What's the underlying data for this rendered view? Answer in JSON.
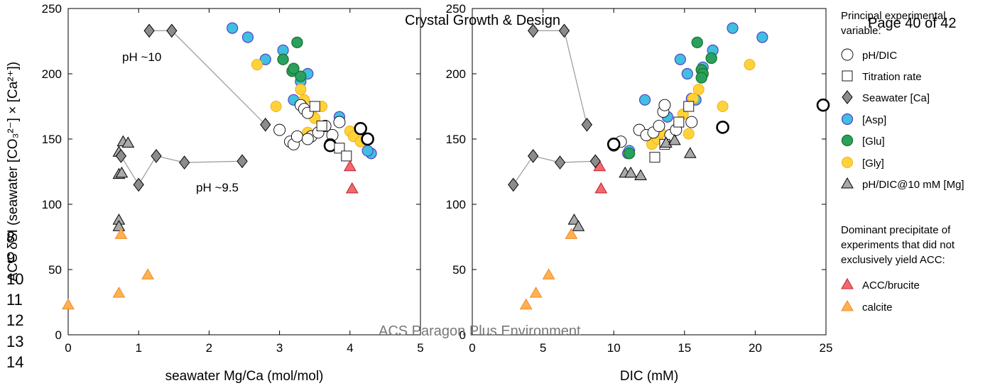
{
  "overlay": {
    "journal": "Crystal Growth & Design",
    "page": "Page 40 of 42",
    "footer": "ACS Paragon Plus Environment",
    "line_numbers": [
      "8",
      "9",
      "10",
      "11",
      "12",
      "13",
      "14"
    ]
  },
  "annotations": {
    "ph10": "pH ~10",
    "ph95": "pH ~9.5"
  },
  "legend": {
    "title1": "Principal experimental variable:",
    "title2": "Dominant precipitate of experiments that did not exclusively yield ACC:",
    "items": [
      {
        "key": "phdic",
        "label": "pH/DIC"
      },
      {
        "key": "titration",
        "label": "Titration rate"
      },
      {
        "key": "seawater",
        "label": "Seawater [Ca]"
      },
      {
        "key": "asp",
        "label": "[Asp]"
      },
      {
        "key": "glu",
        "label": "[Glu]"
      },
      {
        "key": "gly",
        "label": "[Gly]"
      },
      {
        "key": "mg",
        "label": "pH/DIC@10 mM [Mg]"
      },
      {
        "key": "brucite",
        "label": "ACC/brucite"
      },
      {
        "key": "calcite",
        "label": "calcite"
      }
    ]
  },
  "colors": {
    "asp": "#3ec0e0",
    "asp_edge": "#5a3fc4",
    "glu": "#2aa060",
    "glu_edge": "#1b7a2e",
    "gly": "#ffd23a",
    "gly_edge": "#f0b020",
    "seawater": "#8c8c8c",
    "mg": "#a9a9a9",
    "brucite": "#f06a6a",
    "brucite_edge": "#c8283c",
    "calcite": "#ffb052",
    "calcite_edge": "#f0902c",
    "connector": "#999999"
  },
  "chart_data": [
    {
      "type": "scatter",
      "xlabel": "seawater Mg/Ca (mol/mol)",
      "ylabel": "ACC δSI (seawater [CO₃²⁻] × [Ca²⁺])",
      "xlim": [
        0,
        5
      ],
      "ylim": [
        0,
        250
      ],
      "xticks": [
        0,
        1,
        2,
        3,
        4,
        5
      ],
      "yticks": [
        0,
        50,
        100,
        150,
        200,
        250
      ],
      "grid": false,
      "series": [
        {
          "key": "phdic",
          "points": [
            [
              3.0,
              157
            ],
            [
              3.15,
              148
            ],
            [
              3.2,
              146
            ],
            [
              3.25,
              152
            ],
            [
              3.3,
              176
            ],
            [
              3.35,
              173
            ],
            [
              3.4,
              170
            ],
            [
              3.45,
              152
            ],
            [
              3.55,
              155
            ],
            [
              3.65,
              160
            ],
            [
              3.75,
              153
            ],
            [
              3.85,
              163
            ],
            [
              3.72,
              146
            ],
            [
              3.4,
              150
            ]
          ],
          "bold": [
            [
              4.15,
              158
            ],
            [
              4.25,
              150
            ],
            [
              3.72,
              145
            ]
          ]
        },
        {
          "key": "titration",
          "points": [
            [
              3.5,
              175
            ],
            [
              3.6,
              160
            ],
            [
              3.85,
              143
            ],
            [
              3.95,
              137
            ]
          ]
        },
        {
          "key": "seawater",
          "points": [
            [
              1.15,
              233
            ],
            [
              1.47,
              233
            ],
            [
              2.8,
              161
            ],
            [
              0.75,
              137
            ],
            [
              1.0,
              115
            ],
            [
              1.25,
              137
            ],
            [
              1.65,
              132
            ],
            [
              2.47,
              133
            ]
          ]
        },
        {
          "key": "asp",
          "points": [
            [
              2.33,
              235
            ],
            [
              2.55,
              228
            ],
            [
              2.8,
              211
            ],
            [
              3.05,
              218
            ],
            [
              3.2,
              180
            ],
            [
              3.3,
              194
            ],
            [
              3.4,
              200
            ],
            [
              3.85,
              167
            ],
            [
              4.3,
              139
            ],
            [
              4.25,
              141
            ]
          ]
        },
        {
          "key": "glu",
          "points": [
            [
              3.25,
              224
            ],
            [
              3.05,
              211
            ],
            [
              3.18,
              202
            ],
            [
              3.2,
              204
            ],
            [
              3.3,
              198
            ]
          ]
        },
        {
          "key": "gly",
          "points": [
            [
              2.68,
              207
            ],
            [
              2.95,
              175
            ],
            [
              3.3,
              188
            ],
            [
              3.35,
              180
            ],
            [
              3.4,
              155
            ],
            [
              3.45,
              170
            ],
            [
              3.5,
              166
            ],
            [
              3.6,
              175
            ],
            [
              4.0,
              156
            ],
            [
              4.05,
              152
            ],
            [
              4.15,
              148
            ]
          ]
        },
        {
          "key": "mg",
          "points": [
            [
              0.72,
              140
            ],
            [
              0.72,
              123
            ],
            [
              0.76,
              124
            ],
            [
              0.78,
              148
            ],
            [
              0.85,
              147
            ],
            [
              0.72,
              88
            ],
            [
              0.72,
              83
            ]
          ]
        },
        {
          "key": "brucite",
          "points": [
            [
              4.0,
              129
            ],
            [
              4.03,
              112
            ]
          ]
        },
        {
          "key": "calcite",
          "points": [
            [
              0.75,
              77
            ],
            [
              0.72,
              32
            ],
            [
              1.13,
              46
            ],
            [
              0.0,
              23
            ]
          ]
        }
      ],
      "connectors": [
        [
          [
            1.15,
            233
          ],
          [
            1.47,
            233
          ],
          [
            2.8,
            161
          ]
        ],
        [
          [
            0.75,
            137
          ],
          [
            1.0,
            115
          ],
          [
            1.25,
            137
          ],
          [
            1.65,
            132
          ],
          [
            2.47,
            133
          ]
        ]
      ]
    },
    {
      "type": "scatter",
      "xlabel": "DIC (mM)",
      "ylabel": "",
      "xlim": [
        0,
        25
      ],
      "ylim": [
        0,
        250
      ],
      "xticks": [
        0,
        5,
        10,
        15,
        20,
        25
      ],
      "yticks": [
        0,
        50,
        100,
        150,
        200,
        250
      ],
      "grid": false,
      "series": [
        {
          "key": "phdic",
          "points": [
            [
              10.0,
              145
            ],
            [
              10.5,
              148
            ],
            [
              11.8,
              157
            ],
            [
              12.3,
              153
            ],
            [
              12.8,
              155
            ],
            [
              13.2,
              160
            ],
            [
              13.5,
              171
            ],
            [
              13.6,
              176
            ],
            [
              14.0,
              153
            ],
            [
              14.4,
              157
            ],
            [
              15.5,
              163
            ]
          ],
          "bold": [
            [
              24.8,
              176
            ],
            [
              17.7,
              159
            ],
            [
              10.0,
              146
            ]
          ]
        },
        {
          "key": "titration",
          "points": [
            [
              12.9,
              136
            ],
            [
              13.6,
              146
            ],
            [
              14.6,
              163
            ],
            [
              15.3,
              175
            ]
          ]
        },
        {
          "key": "seawater",
          "points": [
            [
              4.3,
              233
            ],
            [
              6.5,
              233
            ],
            [
              8.1,
              161
            ],
            [
              2.9,
              115
            ],
            [
              4.3,
              137
            ],
            [
              6.2,
              132
            ],
            [
              8.7,
              133
            ]
          ]
        },
        {
          "key": "asp",
          "points": [
            [
              12.2,
              180
            ],
            [
              13.8,
              167
            ],
            [
              14.7,
              211
            ],
            [
              15.2,
              200
            ],
            [
              15.5,
              181
            ],
            [
              16.3,
              205
            ],
            [
              17.0,
              218
            ],
            [
              18.4,
              235
            ],
            [
              20.5,
              228
            ],
            [
              11.0,
              139
            ],
            [
              11.1,
              141
            ],
            [
              15.8,
              180
            ]
          ]
        },
        {
          "key": "glu",
          "points": [
            [
              15.9,
              224
            ],
            [
              16.2,
              203
            ],
            [
              16.3,
              200
            ],
            [
              16.2,
              197
            ],
            [
              16.9,
              212
            ],
            [
              11.1,
              139
            ]
          ]
        },
        {
          "key": "gly",
          "points": [
            [
              12.7,
              146
            ],
            [
              13.1,
              150
            ],
            [
              13.3,
              155
            ],
            [
              14.9,
              169
            ],
            [
              15.3,
              154
            ],
            [
              15.6,
              181
            ],
            [
              16.0,
              188
            ],
            [
              17.7,
              175
            ],
            [
              19.6,
              207
            ]
          ]
        },
        {
          "key": "mg",
          "points": [
            [
              10.8,
              124
            ],
            [
              11.2,
              124
            ],
            [
              11.9,
              122
            ],
            [
              13.7,
              147
            ],
            [
              14.3,
              149
            ],
            [
              15.4,
              139
            ],
            [
              7.2,
              88
            ],
            [
              7.5,
              83
            ]
          ]
        },
        {
          "key": "brucite",
          "points": [
            [
              9.0,
              129
            ],
            [
              9.1,
              112
            ]
          ]
        },
        {
          "key": "calcite",
          "points": [
            [
              7.0,
              77
            ],
            [
              5.4,
              46
            ],
            [
              4.5,
              32
            ],
            [
              3.8,
              23
            ]
          ]
        }
      ],
      "connectors": [
        [
          [
            4.3,
            233
          ],
          [
            6.5,
            233
          ],
          [
            8.1,
            161
          ]
        ],
        [
          [
            2.9,
            115
          ],
          [
            4.3,
            137
          ],
          [
            6.2,
            132
          ],
          [
            8.7,
            133
          ]
        ]
      ]
    }
  ]
}
